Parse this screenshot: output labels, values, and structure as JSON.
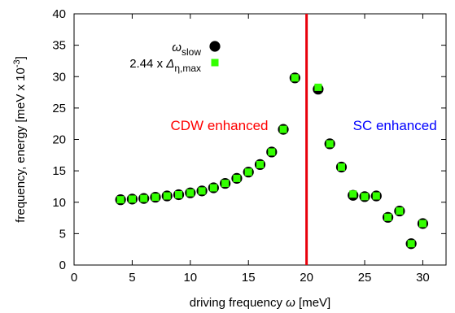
{
  "chart_data": {
    "type": "scatter",
    "xlabel": {
      "text": "driving frequency",
      "symbol": "ω",
      "unit": "[meV]"
    },
    "ylabel": {
      "text": "frequency, energy [meV x 10",
      "superscript": "-3",
      "suffix": "]"
    },
    "xlim": [
      0,
      32
    ],
    "ylim": [
      0,
      40
    ],
    "xticks": [
      0,
      5,
      10,
      15,
      20,
      25,
      30
    ],
    "yticks": [
      0,
      5,
      10,
      15,
      20,
      25,
      30,
      35,
      40
    ],
    "grid": false,
    "legend_position": "top-left",
    "series": [
      {
        "name": "ω",
        "name_subscript": "slow",
        "marker": "circle",
        "color": "#000000",
        "x": [
          4,
          5,
          6,
          7,
          8,
          9,
          10,
          11,
          12,
          13,
          14,
          15,
          16,
          17,
          18,
          19,
          21,
          22,
          23,
          24,
          25,
          26,
          27,
          28,
          29,
          30
        ],
        "y": [
          10.4,
          10.5,
          10.6,
          10.8,
          11.0,
          11.2,
          11.5,
          11.8,
          12.3,
          13.0,
          13.8,
          14.8,
          16.0,
          18.0,
          21.6,
          29.8,
          28.0,
          19.3,
          15.6,
          11.1,
          10.9,
          11.0,
          7.6,
          8.6,
          3.4,
          6.6
        ]
      },
      {
        "name": "2.44 x Δ",
        "name_subscript": "η,max",
        "marker": "square",
        "color": "#33ff00",
        "x": [
          4,
          5,
          6,
          7,
          8,
          9,
          10,
          11,
          12,
          13,
          14,
          15,
          16,
          17,
          18,
          19,
          21,
          22,
          23,
          24,
          25,
          26,
          27,
          28,
          29,
          30
        ],
        "y": [
          10.4,
          10.5,
          10.6,
          10.8,
          11.0,
          11.2,
          11.5,
          11.8,
          12.3,
          13.0,
          13.8,
          14.8,
          16.0,
          18.0,
          21.6,
          29.8,
          28.3,
          19.3,
          15.6,
          11.3,
          10.9,
          11.0,
          7.6,
          8.6,
          3.4,
          6.6
        ]
      }
    ],
    "vline": {
      "x": 20,
      "color": "#e8000b"
    },
    "annotations": [
      {
        "text": "CDW enhanced",
        "x": 12.5,
        "y": 21.5,
        "color": "#ff0000"
      },
      {
        "text": "SC enhanced",
        "x": 27.6,
        "y": 21.5,
        "color": "#0000ff"
      }
    ]
  }
}
